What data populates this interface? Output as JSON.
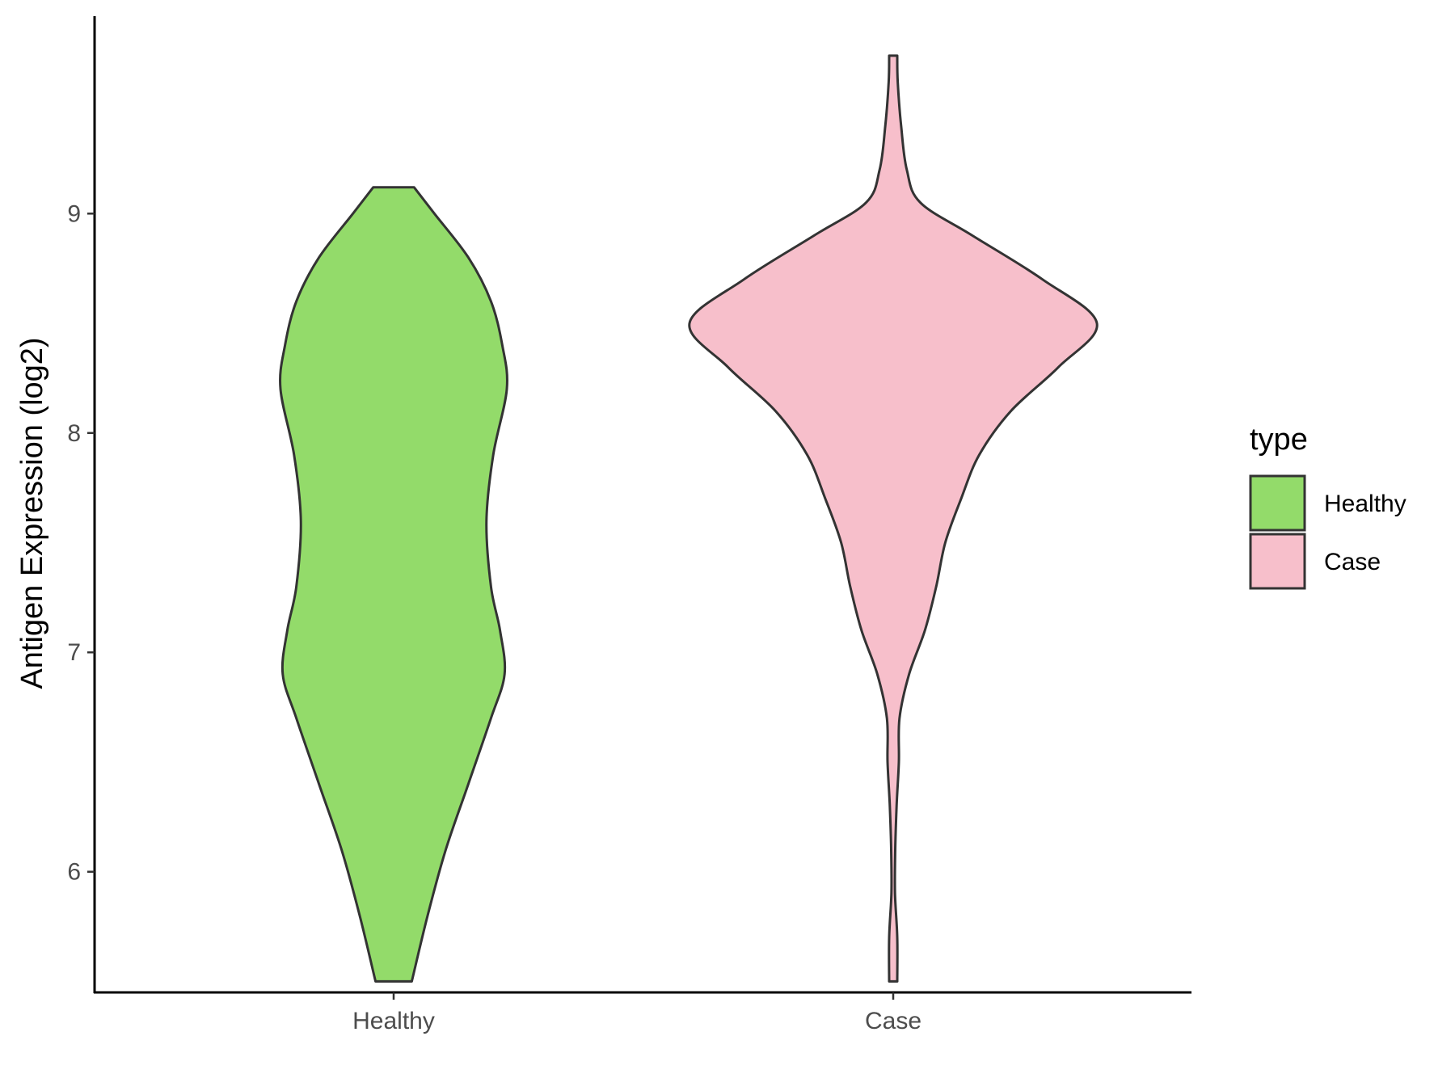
{
  "chart_data": {
    "type": "violin",
    "ylabel": "Antigen Expression (log2)",
    "xlabel": "",
    "ylim": [
      5.45,
      9.9
    ],
    "yticks": [
      6,
      7,
      8,
      9
    ],
    "categories": [
      "Healthy",
      "Case"
    ],
    "legend": {
      "title": "type",
      "position": "right"
    },
    "grid": false,
    "series": [
      {
        "name": "Healthy",
        "color": "#93DB6A",
        "min": 5.5,
        "max": 9.12,
        "profile": [
          [
            5.5,
            0.08
          ],
          [
            5.8,
            0.15
          ],
          [
            6.1,
            0.23
          ],
          [
            6.4,
            0.33
          ],
          [
            6.7,
            0.43
          ],
          [
            6.9,
            0.49
          ],
          [
            7.1,
            0.47
          ],
          [
            7.3,
            0.43
          ],
          [
            7.6,
            0.41
          ],
          [
            7.9,
            0.44
          ],
          [
            8.2,
            0.5
          ],
          [
            8.4,
            0.48
          ],
          [
            8.6,
            0.43
          ],
          [
            8.8,
            0.33
          ],
          [
            9.0,
            0.18
          ],
          [
            9.12,
            0.09
          ]
        ]
      },
      {
        "name": "Case",
        "color": "#F7BFCB",
        "min": 5.5,
        "max": 9.72,
        "profile": [
          [
            5.5,
            0.018
          ],
          [
            5.7,
            0.018
          ],
          [
            5.9,
            0.008
          ],
          [
            6.1,
            0.009
          ],
          [
            6.3,
            0.015
          ],
          [
            6.5,
            0.025
          ],
          [
            6.7,
            0.028
          ],
          [
            6.9,
            0.07
          ],
          [
            7.1,
            0.14
          ],
          [
            7.3,
            0.19
          ],
          [
            7.5,
            0.23
          ],
          [
            7.7,
            0.3
          ],
          [
            7.9,
            0.38
          ],
          [
            8.1,
            0.52
          ],
          [
            8.3,
            0.73
          ],
          [
            8.5,
            0.9
          ],
          [
            8.7,
            0.66
          ],
          [
            8.9,
            0.35
          ],
          [
            9.05,
            0.12
          ],
          [
            9.2,
            0.06
          ],
          [
            9.4,
            0.035
          ],
          [
            9.6,
            0.02
          ],
          [
            9.72,
            0.018
          ]
        ]
      }
    ]
  }
}
